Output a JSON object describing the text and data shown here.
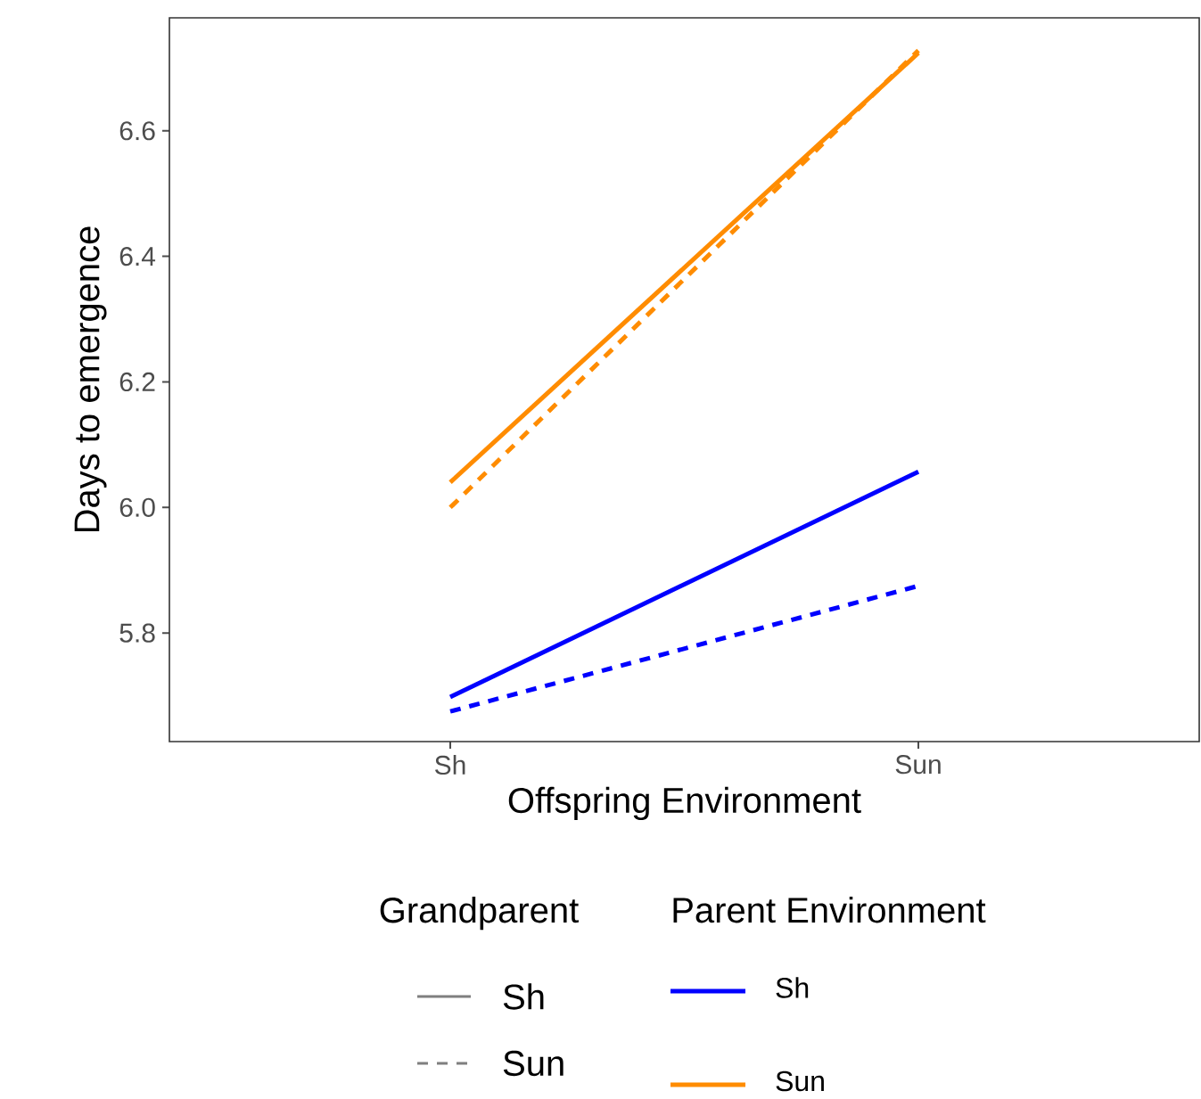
{
  "chart_data": {
    "type": "line",
    "xlabel": "Offspring Environment",
    "ylabel": "Days to emergence",
    "categories": [
      "Sh",
      "Sun"
    ],
    "series": [
      {
        "color": "#0000ff",
        "line_style": "solid",
        "values": [
          5.698,
          6.057
        ]
      },
      {
        "color": "#0000ff",
        "line_style": "dashed",
        "values": [
          5.675,
          5.875
        ]
      },
      {
        "color": "#ff8c00",
        "line_style": "solid",
        "values": [
          6.04,
          6.724
        ]
      },
      {
        "color": "#ff8c00",
        "line_style": "dashed",
        "values": [
          6.0,
          6.728
        ]
      }
    ],
    "ylim": [
      5.627,
      6.78
    ],
    "yticks": [
      {
        "value": 5.8,
        "label": "5.8"
      },
      {
        "value": 6.0,
        "label": "6.0"
      },
      {
        "value": 6.2,
        "label": "6.2"
      },
      {
        "value": 6.4,
        "label": "6.4"
      },
      {
        "value": 6.6,
        "label": "6.6"
      }
    ],
    "grid": false,
    "annotations": [
      "Grandparent",
      "Parent Environment",
      "Sh",
      "Sun",
      "Sh",
      "Sun"
    ]
  }
}
